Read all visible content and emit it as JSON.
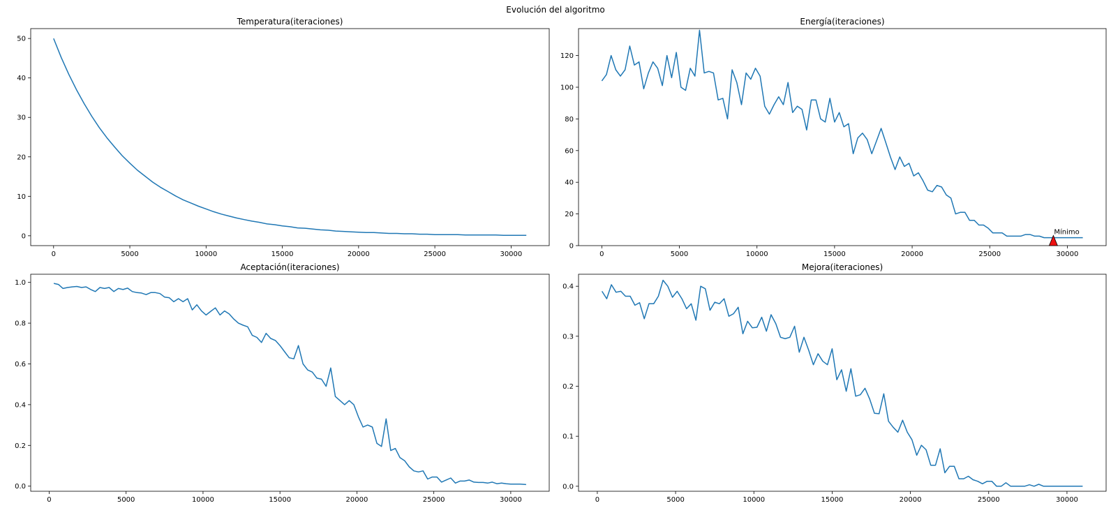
{
  "figure": {
    "suptitle": "Evolución del algoritmo"
  },
  "colors": {
    "line": "#1f77b4",
    "marker_fill": "#ee1111",
    "marker_edge": "#000000"
  },
  "chart_data": [
    {
      "type": "line",
      "title": "Temperatura(iteraciones)",
      "xlim": [
        -1500,
        32500
      ],
      "ylim": [
        -2.5,
        52.5
      ],
      "xticks": [
        0,
        5000,
        10000,
        15000,
        20000,
        25000,
        30000
      ],
      "yticks": [
        0,
        10,
        20,
        30,
        40,
        50
      ],
      "series": [
        {
          "x": [
            0,
            500,
            1000,
            1500,
            2000,
            2500,
            3000,
            3500,
            4000,
            4500,
            5000,
            5500,
            6000,
            6500,
            7000,
            7500,
            8000,
            8500,
            9000,
            9500,
            10000,
            10500,
            11000,
            11500,
            12000,
            12500,
            13000,
            13500,
            14000,
            14500,
            15000,
            15500,
            16000,
            16500,
            17000,
            17500,
            18000,
            18500,
            19000,
            19500,
            20000,
            20500,
            21000,
            21500,
            22000,
            22500,
            23000,
            23500,
            24000,
            24500,
            25000,
            25500,
            26000,
            26500,
            27000,
            27500,
            28000,
            28500,
            29000,
            29500,
            30000,
            30500,
            31000
          ],
          "y": [
            50,
            45.2,
            40.9,
            37.0,
            33.5,
            30.3,
            27.4,
            24.8,
            22.5,
            20.3,
            18.4,
            16.6,
            15.1,
            13.6,
            12.3,
            11.2,
            10.1,
            9.1,
            8.3,
            7.5,
            6.8,
            6.1,
            5.5,
            5.0,
            4.5,
            4.1,
            3.7,
            3.4,
            3.0,
            2.8,
            2.5,
            2.3,
            2.0,
            1.9,
            1.7,
            1.5,
            1.4,
            1.2,
            1.1,
            1.0,
            0.9,
            0.8,
            0.8,
            0.7,
            0.6,
            0.6,
            0.5,
            0.5,
            0.4,
            0.4,
            0.3,
            0.3,
            0.3,
            0.3,
            0.2,
            0.2,
            0.2,
            0.2,
            0.2,
            0.1,
            0.1,
            0.1,
            0.1
          ]
        }
      ]
    },
    {
      "type": "line",
      "title": "Energía(iteraciones)",
      "xlim": [
        -1500,
        32500
      ],
      "ylim": [
        0,
        137
      ],
      "xticks": [
        0,
        5000,
        10000,
        15000,
        20000,
        25000,
        30000
      ],
      "yticks": [
        0,
        20,
        40,
        60,
        80,
        100,
        120
      ],
      "series": [
        {
          "x": [
            0,
            300,
            600,
            900,
            1200,
            1500,
            1800,
            2100,
            2400,
            2700,
            3000,
            3300,
            3600,
            3900,
            4200,
            4500,
            4800,
            5100,
            5400,
            5700,
            6000,
            6300,
            6600,
            6900,
            7200,
            7500,
            7800,
            8100,
            8400,
            8700,
            9000,
            9300,
            9600,
            9900,
            10200,
            10500,
            10800,
            11100,
            11400,
            11700,
            12000,
            12300,
            12600,
            12900,
            13200,
            13500,
            13800,
            14100,
            14400,
            14700,
            15000,
            15300,
            15600,
            15900,
            16200,
            16500,
            16800,
            17100,
            17400,
            17700,
            18000,
            18300,
            18600,
            18900,
            19200,
            19500,
            19800,
            20100,
            20400,
            20700,
            21000,
            21300,
            21600,
            21900,
            22200,
            22500,
            22800,
            23100,
            23400,
            23700,
            24000,
            24300,
            24600,
            24900,
            25200,
            25500,
            25800,
            26100,
            26400,
            26700,
            27000,
            27300,
            27600,
            27900,
            28200,
            28500,
            28800,
            29100,
            29400,
            29700,
            30000,
            30300,
            30600,
            31000
          ],
          "y": [
            104,
            108,
            120,
            111,
            107,
            111,
            126,
            114,
            116,
            99,
            109,
            116,
            112,
            101,
            120,
            106,
            122,
            100,
            98,
            112,
            107,
            136,
            109,
            110,
            109,
            92,
            93,
            80,
            111,
            103,
            89,
            109,
            105,
            112,
            107,
            88,
            83,
            89,
            94,
            89,
            103,
            84,
            88,
            86,
            73,
            92,
            92,
            80,
            78,
            93,
            78,
            84,
            75,
            77,
            58,
            68,
            71,
            67,
            58,
            66,
            74,
            65,
            56,
            48,
            56,
            50,
            52,
            44,
            46,
            41,
            35,
            34,
            38,
            37,
            32,
            30,
            20,
            21,
            21,
            16,
            16,
            13,
            13,
            11,
            8,
            8,
            8,
            6,
            6,
            6,
            6,
            7,
            7,
            6,
            6,
            5,
            5,
            5,
            5,
            5,
            5,
            5,
            5,
            5
          ]
        }
      ],
      "annotations": [
        {
          "text": "Mínimo",
          "x": 29100,
          "y": 2
        }
      ]
    },
    {
      "type": "line",
      "title": "Aceptación(iteraciones)",
      "xlim": [
        -1200,
        32500
      ],
      "ylim": [
        -0.025,
        1.04
      ],
      "xticks": [
        0,
        5000,
        10000,
        15000,
        20000,
        25000,
        30000
      ],
      "yticks": [
        0.0,
        0.2,
        0.4,
        0.6,
        0.8,
        1.0
      ],
      "series": [
        {
          "x": [
            300,
            600,
            900,
            1200,
            1500,
            1800,
            2100,
            2400,
            2700,
            3000,
            3300,
            3600,
            3900,
            4200,
            4500,
            4800,
            5100,
            5400,
            5700,
            6000,
            6300,
            6600,
            6900,
            7200,
            7500,
            7800,
            8100,
            8400,
            8700,
            9000,
            9300,
            9600,
            9900,
            10200,
            10500,
            10800,
            11100,
            11400,
            11700,
            12000,
            12300,
            12600,
            12900,
            13200,
            13500,
            13800,
            14100,
            14400,
            14700,
            15000,
            15300,
            15600,
            15900,
            16200,
            16500,
            16800,
            17100,
            17400,
            17700,
            18000,
            18300,
            18600,
            18900,
            19200,
            19500,
            19800,
            20100,
            20400,
            20700,
            21000,
            21300,
            21600,
            21900,
            22200,
            22500,
            22800,
            23100,
            23400,
            23700,
            24000,
            24300,
            24600,
            24900,
            25200,
            25500,
            25800,
            26100,
            26400,
            26700,
            27000,
            27300,
            27600,
            27900,
            28200,
            28500,
            28800,
            29100,
            29400,
            29700,
            30000,
            30300,
            30600,
            31000
          ],
          "y": [
            0.995,
            0.99,
            0.97,
            0.975,
            0.978,
            0.98,
            0.975,
            0.978,
            0.965,
            0.955,
            0.975,
            0.97,
            0.975,
            0.955,
            0.97,
            0.965,
            0.972,
            0.955,
            0.95,
            0.948,
            0.94,
            0.95,
            0.95,
            0.945,
            0.928,
            0.925,
            0.905,
            0.92,
            0.905,
            0.92,
            0.865,
            0.89,
            0.86,
            0.84,
            0.858,
            0.875,
            0.84,
            0.86,
            0.845,
            0.82,
            0.8,
            0.79,
            0.782,
            0.74,
            0.73,
            0.705,
            0.75,
            0.725,
            0.715,
            0.69,
            0.66,
            0.63,
            0.625,
            0.69,
            0.6,
            0.57,
            0.56,
            0.53,
            0.525,
            0.49,
            0.58,
            0.44,
            0.42,
            0.4,
            0.42,
            0.4,
            0.34,
            0.29,
            0.3,
            0.29,
            0.21,
            0.195,
            0.33,
            0.175,
            0.185,
            0.14,
            0.125,
            0.095,
            0.075,
            0.07,
            0.075,
            0.035,
            0.045,
            0.045,
            0.02,
            0.03,
            0.04,
            0.015,
            0.025,
            0.025,
            0.03,
            0.02,
            0.018,
            0.018,
            0.015,
            0.02,
            0.012,
            0.015,
            0.012,
            0.01,
            0.01,
            0.01,
            0.008
          ]
        }
      ]
    },
    {
      "type": "line",
      "title": "Mejora(iteraciones)",
      "xlim": [
        -1200,
        32500
      ],
      "ylim": [
        -0.01,
        0.424
      ],
      "xticks": [
        0,
        5000,
        10000,
        15000,
        20000,
        25000,
        30000
      ],
      "yticks": [
        0.0,
        0.1,
        0.2,
        0.3,
        0.4
      ],
      "series": [
        {
          "x": [
            300,
            600,
            900,
            1200,
            1500,
            1800,
            2100,
            2400,
            2700,
            3000,
            3300,
            3600,
            3900,
            4200,
            4500,
            4800,
            5100,
            5400,
            5700,
            6000,
            6300,
            6600,
            6900,
            7200,
            7500,
            7800,
            8100,
            8400,
            8700,
            9000,
            9300,
            9600,
            9900,
            10200,
            10500,
            10800,
            11100,
            11400,
            11700,
            12000,
            12300,
            12600,
            12900,
            13200,
            13500,
            13800,
            14100,
            14400,
            14700,
            15000,
            15300,
            15600,
            15900,
            16200,
            16500,
            16800,
            17100,
            17400,
            17700,
            18000,
            18300,
            18600,
            18900,
            19200,
            19500,
            19800,
            20100,
            20400,
            20700,
            21000,
            21300,
            21600,
            21900,
            22200,
            22500,
            22800,
            23100,
            23400,
            23700,
            24000,
            24300,
            24600,
            24900,
            25200,
            25500,
            25800,
            26100,
            26400,
            26700,
            27000,
            27300,
            27600,
            27900,
            28200,
            28500,
            28800,
            29100,
            29400,
            29700,
            30000,
            30300,
            30600,
            31000
          ],
          "y": [
            0.39,
            0.375,
            0.403,
            0.388,
            0.39,
            0.38,
            0.38,
            0.362,
            0.367,
            0.335,
            0.365,
            0.365,
            0.38,
            0.412,
            0.4,
            0.378,
            0.39,
            0.375,
            0.355,
            0.365,
            0.332,
            0.4,
            0.395,
            0.352,
            0.368,
            0.365,
            0.375,
            0.34,
            0.345,
            0.358,
            0.305,
            0.33,
            0.317,
            0.318,
            0.338,
            0.31,
            0.343,
            0.325,
            0.298,
            0.295,
            0.298,
            0.32,
            0.268,
            0.298,
            0.272,
            0.243,
            0.265,
            0.25,
            0.243,
            0.275,
            0.213,
            0.233,
            0.19,
            0.235,
            0.18,
            0.183,
            0.196,
            0.174,
            0.146,
            0.145,
            0.185,
            0.13,
            0.118,
            0.108,
            0.132,
            0.108,
            0.093,
            0.062,
            0.082,
            0.073,
            0.042,
            0.042,
            0.075,
            0.027,
            0.04,
            0.04,
            0.015,
            0.015,
            0.02,
            0.013,
            0.01,
            0.005,
            0.01,
            0.01,
            0.0,
            0.0,
            0.007,
            0.0,
            0.0,
            0.0,
            0.0,
            0.003,
            0.0,
            0.004,
            0.0,
            0.0,
            0.0,
            0.0,
            0.0,
            0.0,
            0.0,
            0.0,
            0.0
          ]
        }
      ]
    }
  ]
}
